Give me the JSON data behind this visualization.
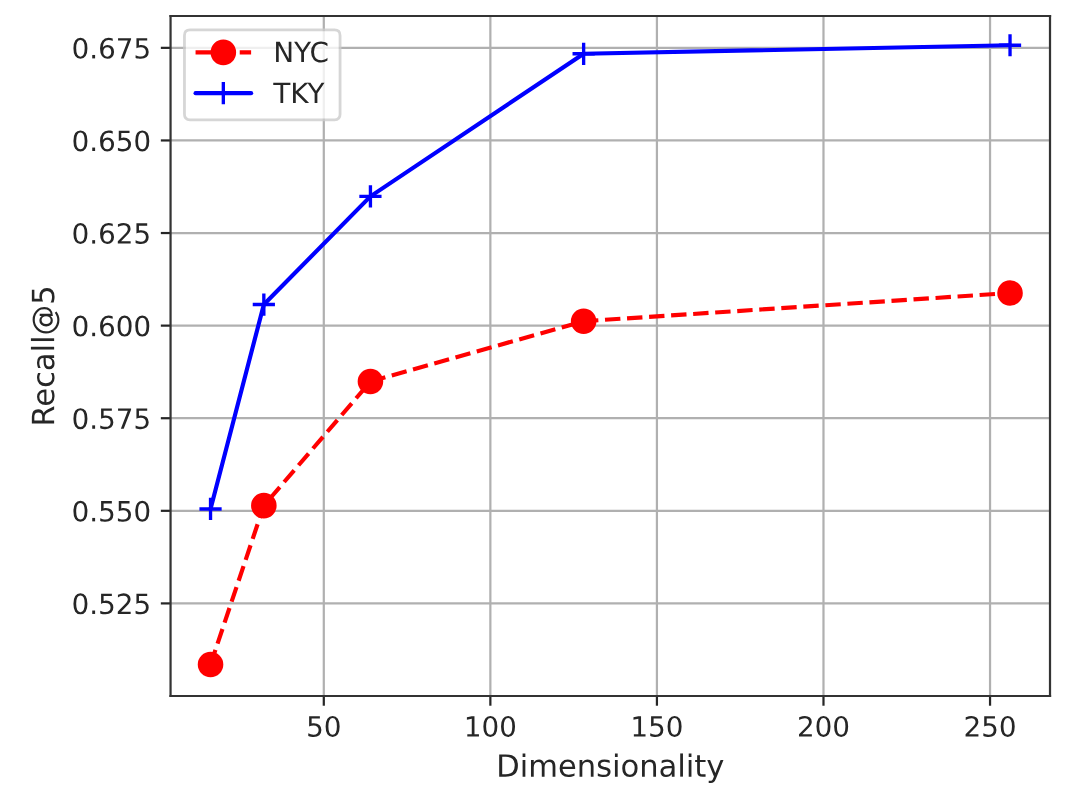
{
  "chart_data": {
    "type": "line",
    "xlabel": "Dimensionality",
    "ylabel": "Recall@5",
    "x": [
      16,
      32,
      64,
      128,
      256
    ],
    "series": [
      {
        "name": "NYC",
        "color": "#ff0000",
        "values": [
          0.5085,
          0.5514,
          0.5849,
          0.6012,
          0.6088
        ],
        "marker": "circle",
        "line_style": "dashed"
      },
      {
        "name": "TKY",
        "color": "#0000ff",
        "values": [
          0.5505,
          0.6057,
          0.6349,
          0.6734,
          0.6757
        ],
        "marker": "cross",
        "line_style": "solid"
      }
    ],
    "xlim": [
      4,
      268
    ],
    "xticks": [
      50,
      100,
      150,
      200,
      250
    ],
    "ylim": [
      0.5,
      0.6836
    ],
    "yticks": [
      {
        "value": 0.525,
        "label": "0.525"
      },
      {
        "value": 0.55,
        "label": "0.550"
      },
      {
        "value": 0.575,
        "label": "0.575"
      },
      {
        "value": 0.6,
        "label": "0.600"
      },
      {
        "value": 0.625,
        "label": "0.625"
      },
      {
        "value": 0.65,
        "label": "0.650"
      },
      {
        "value": 0.675,
        "label": "0.675"
      }
    ],
    "grid": true,
    "legend": "top left"
  }
}
